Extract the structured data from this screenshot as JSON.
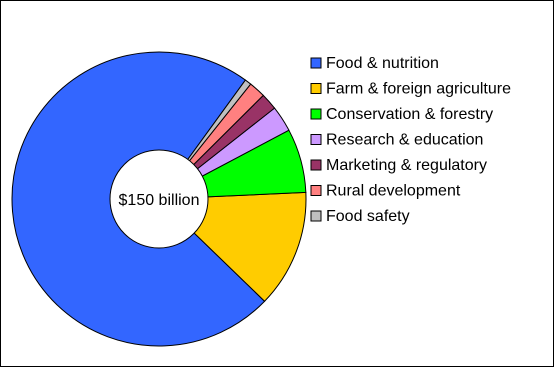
{
  "chart_data": {
    "type": "pie",
    "center_label": "$150 billion",
    "legend_position": "right",
    "categories": [
      "Food & nutrition",
      "Farm & foreign agriculture",
      "Conservation & forestry",
      "Research & education",
      "Marketing & regulatory",
      "Rural development",
      "Food safety"
    ],
    "values": [
      71.3,
      12.7,
      6.9,
      2.8,
      1.8,
      1.8,
      0.7
    ],
    "colors": [
      "#3366ff",
      "#ffcc00",
      "#00ff00",
      "#cc99ff",
      "#993366",
      "#ff8080",
      "#c0c0c0"
    ]
  }
}
